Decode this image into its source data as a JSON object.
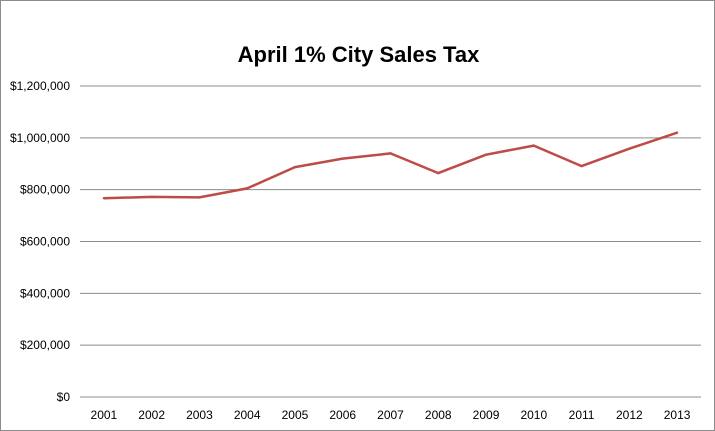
{
  "chart_data": {
    "type": "line",
    "title": "April 1% City Sales Tax",
    "xlabel": "",
    "ylabel": "",
    "categories": [
      "2001",
      "2002",
      "2003",
      "2004",
      "2005",
      "2006",
      "2007",
      "2008",
      "2009",
      "2010",
      "2011",
      "2012",
      "2013"
    ],
    "series": [
      {
        "values": [
          767000,
          772000,
          770000,
          805000,
          887000,
          920000,
          940000,
          864000,
          935000,
          970000,
          891000,
          958000,
          1020000
        ],
        "color": "#be4b48"
      }
    ],
    "ylim": [
      0,
      1200000
    ],
    "yticks": [
      "$0",
      "$200,000",
      "$400,000",
      "$600,000",
      "$800,000",
      "$1,000,000",
      "$1,200,000"
    ],
    "grid": "horizontal",
    "legend": "none"
  }
}
